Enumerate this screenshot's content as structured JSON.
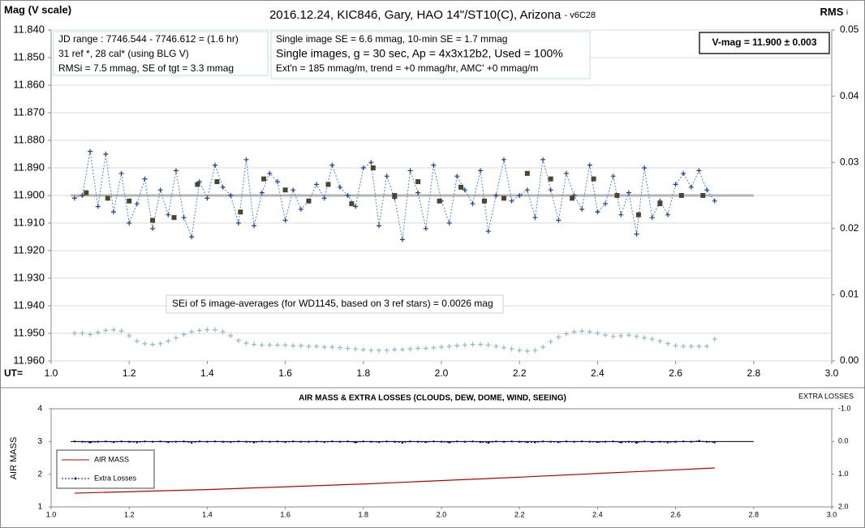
{
  "chart_data": [
    {
      "type": "line",
      "title": "2016.12.24,  KIC846, Gary, HAO 14\"/ST10(C), Arizona",
      "title_suffix": "- v6C28",
      "ylabel": "Mag (V scale)",
      "y2label": "RMS",
      "y2label_sub": "i",
      "xlabel": "UT=",
      "xlim": [
        1.0,
        3.0
      ],
      "xticks": [
        {
          "value": 1.0,
          "label": "1.0"
        },
        1.2,
        1.4,
        1.6,
        1.8,
        {
          "value": 2.0,
          "label": "2.0"
        },
        2.2,
        2.4,
        2.6,
        2.8,
        {
          "value": 3.0,
          "label": "3.0"
        }
      ],
      "ylim": [
        11.84,
        11.96
      ],
      "y_inverted": true,
      "yticks": [
        {
          "value": 11.84,
          "label": "11.840"
        },
        {
          "value": 11.85,
          "label": "11.850"
        },
        {
          "value": 11.86,
          "label": "11.860"
        },
        {
          "value": 11.87,
          "label": "11.870"
        },
        {
          "value": 11.88,
          "label": "11.880"
        },
        {
          "value": 11.89,
          "label": "11.890"
        },
        {
          "value": 11.9,
          "label": "11.900"
        },
        {
          "value": 11.91,
          "label": "11.910"
        },
        {
          "value": 11.92,
          "label": "11.920"
        },
        {
          "value": 11.93,
          "label": "11.930"
        },
        {
          "value": 11.94,
          "label": "11.940"
        },
        {
          "value": 11.95,
          "label": "11.950"
        },
        {
          "value": 11.96,
          "label": "11.960"
        }
      ],
      "y2lim": [
        0,
        0.05
      ],
      "y2ticks": [
        {
          "value": 0,
          "label": "0.00"
        },
        0.01,
        0.02,
        0.03,
        0.04,
        0.05
      ],
      "grid": true,
      "x": [
        1.06,
        1.08,
        1.1,
        1.12,
        1.14,
        1.16,
        1.18,
        1.2,
        1.22,
        1.24,
        1.26,
        1.28,
        1.3,
        1.32,
        1.34,
        1.36,
        1.38,
        1.4,
        1.42,
        1.44,
        1.46,
        1.48,
        1.5,
        1.52,
        1.54,
        1.56,
        1.58,
        1.6,
        1.62,
        1.64,
        1.66,
        1.68,
        1.7,
        1.72,
        1.74,
        1.76,
        1.78,
        1.8,
        1.82,
        1.84,
        1.86,
        1.88,
        1.9,
        1.92,
        1.94,
        1.96,
        1.98,
        2.0,
        2.02,
        2.04,
        2.06,
        2.08,
        2.1,
        2.12,
        2.14,
        2.16,
        2.18,
        2.2,
        2.22,
        2.24,
        2.26,
        2.28,
        2.3,
        2.32,
        2.34,
        2.36,
        2.38,
        2.4,
        2.42,
        2.44,
        2.46,
        2.48,
        2.5,
        2.52,
        2.54,
        2.56,
        2.58,
        2.6,
        2.62,
        2.64,
        2.66,
        2.68,
        2.7
      ],
      "series": [
        {
          "color": "#1f3f8f",
          "line_color": "#4a86c8",
          "line": "dashed",
          "marker": "+",
          "values": [
            11.901,
            11.9,
            11.884,
            11.904,
            11.885,
            11.906,
            11.892,
            11.91,
            11.903,
            11.894,
            11.912,
            11.898,
            11.907,
            11.891,
            11.908,
            11.915,
            11.895,
            11.901,
            11.889,
            11.897,
            11.9,
            11.91,
            11.887,
            11.911,
            11.899,
            11.892,
            11.895,
            11.909,
            11.898,
            11.905,
            11.902,
            11.896,
            11.901,
            11.889,
            11.897,
            11.9,
            11.904,
            11.89,
            11.888,
            11.911,
            11.893,
            11.901,
            11.916,
            11.891,
            11.899,
            11.912,
            11.889,
            11.902,
            11.91,
            11.893,
            11.898,
            11.903,
            11.891,
            11.913,
            11.9,
            11.887,
            11.902,
            11.9,
            11.898,
            11.908,
            11.887,
            11.898,
            11.909,
            11.892,
            11.9,
            11.905,
            11.889,
            11.906,
            11.903,
            11.893,
            11.907,
            11.899,
            11.914,
            11.89,
            11.908,
            11.902,
            11.907,
            11.896,
            11.892,
            11.897,
            11.891,
            11.898,
            11.902
          ]
        },
        {
          "color": "#4a4530",
          "line": "none",
          "marker": "square",
          "x": [
            1.09,
            1.145,
            1.2,
            1.26,
            1.315,
            1.375,
            1.425,
            1.485,
            1.545,
            1.6,
            1.66,
            1.71,
            1.77,
            1.825,
            1.88,
            1.94,
            1.995,
            2.05,
            2.11,
            2.16,
            2.22,
            2.28,
            2.335,
            2.39,
            2.45,
            2.505,
            2.56,
            2.615,
            2.67
          ],
          "values": [
            11.899,
            11.901,
            11.902,
            11.909,
            11.908,
            11.896,
            11.895,
            11.906,
            11.894,
            11.898,
            11.902,
            11.896,
            11.903,
            11.89,
            11.9,
            11.895,
            11.902,
            11.897,
            11.902,
            11.901,
            11.892,
            11.894,
            11.901,
            11.894,
            11.9,
            11.907,
            11.903,
            11.9,
            11.9
          ]
        },
        {
          "color": "#8fb8c8",
          "line": "none",
          "marker": "+",
          "axis": "y2",
          "values": [
            0.0042,
            0.0042,
            0.004,
            0.0043,
            0.0046,
            0.0047,
            0.0045,
            0.0038,
            0.003,
            0.0026,
            0.0025,
            0.0026,
            0.003,
            0.0035,
            0.004,
            0.0044,
            0.0046,
            0.0047,
            0.0047,
            0.0044,
            0.0038,
            0.0031,
            0.0027,
            0.0025,
            0.0024,
            0.0024,
            0.0024,
            0.0024,
            0.0023,
            0.0023,
            0.0022,
            0.0022,
            0.0021,
            0.0021,
            0.002,
            0.0019,
            0.0018,
            0.0017,
            0.0016,
            0.0016,
            0.0016,
            0.0017,
            0.0017,
            0.0018,
            0.0019,
            0.0019,
            0.002,
            0.0021,
            0.0022,
            0.0023,
            0.0024,
            0.0025,
            0.0025,
            0.0024,
            0.0022,
            0.002,
            0.0018,
            0.0016,
            0.0015,
            0.0016,
            0.0021,
            0.0029,
            0.0036,
            0.0041,
            0.0044,
            0.0045,
            0.0044,
            0.0042,
            0.0039,
            0.0037,
            0.0038,
            0.0039,
            0.0037,
            0.0035,
            0.0033,
            0.003,
            0.0026,
            0.0023,
            0.0022,
            0.0022,
            0.0022,
            0.0022,
            0.0033
          ]
        }
      ],
      "ref_line": {
        "value": 11.9,
        "x": [
          1.05,
          2.8
        ],
        "color": "#b4b4b4"
      },
      "info_boxes": [
        [
          "JD range  : 7746.544 - 7746.612 = (1.6 hr)",
          "31 ref *, 28 cal* (using BLG V)",
          "RMSi = 7.5 mmag, SE of tgt = 3.3 mmag"
        ],
        [
          "Single image SE = 6.6 mmag, 10-min SE = 1.7 mmag",
          "Single images, g = 30 sec, Ap = 4x3x12b2, Used = 100%",
          "Ext'n = 185 mmag/m, trend = +0 mmag/hr, AMC' +0 mmag/m"
        ]
      ],
      "vmag_box": "V-mag = 11.900 ± 0.003",
      "note": "SEi of 5 image-averages (for WD1145, based on 3 ref stars) = 0.0026 mag"
    },
    {
      "type": "line",
      "title": "AIR MASS & EXTRA LOSSES (CLOUDS, DEW, DOME, WIND, SEEING)",
      "ylabel": "AIR MASS",
      "y2label": "EXTRA LOSSES",
      "xlim": [
        1.0,
        3.0
      ],
      "xticks": [
        {
          "value": 1.0,
          "label": "1.0"
        },
        1.2,
        1.4,
        1.6,
        1.8,
        {
          "value": 2.0,
          "label": "2.0"
        },
        2.2,
        2.4,
        2.6,
        2.8,
        {
          "value": 3.0,
          "label": "3.0"
        }
      ],
      "ylim": [
        1,
        4
      ],
      "yticks": [
        1,
        2,
        3,
        4
      ],
      "y2lim": [
        -1.0,
        2.0
      ],
      "y2_inverted": true,
      "y2ticks": [
        {
          "value": -1.0,
          "label": "-1.0"
        },
        {
          "value": 0,
          "label": "0.0"
        },
        {
          "value": 1.0,
          "label": "1.0"
        },
        {
          "value": 2.0,
          "label": "2.0"
        }
      ],
      "legend": "lower left",
      "x": [
        1.06,
        1.08,
        1.1,
        1.12,
        1.14,
        1.16,
        1.18,
        1.2,
        1.22,
        1.24,
        1.26,
        1.28,
        1.3,
        1.32,
        1.34,
        1.36,
        1.38,
        1.4,
        1.42,
        1.44,
        1.46,
        1.48,
        1.5,
        1.52,
        1.54,
        1.56,
        1.58,
        1.6,
        1.62,
        1.64,
        1.66,
        1.68,
        1.7,
        1.72,
        1.74,
        1.76,
        1.78,
        1.8,
        1.82,
        1.84,
        1.86,
        1.88,
        1.9,
        1.92,
        1.94,
        1.96,
        1.98,
        2.0,
        2.02,
        2.04,
        2.06,
        2.08,
        2.1,
        2.12,
        2.14,
        2.16,
        2.18,
        2.2,
        2.22,
        2.24,
        2.26,
        2.28,
        2.3,
        2.32,
        2.34,
        2.36,
        2.38,
        2.4,
        2.42,
        2.44,
        2.46,
        2.48,
        2.5,
        2.52,
        2.54,
        2.56,
        2.58,
        2.6,
        2.62,
        2.64,
        2.66,
        2.68,
        2.7
      ],
      "series": [
        {
          "name": "AIR MASS",
          "color": "#c00000",
          "line": "solid",
          "marker": "none",
          "x": [
            1.06,
            1.4,
            1.8,
            2.2,
            2.7
          ],
          "values": [
            1.42,
            1.53,
            1.7,
            1.91,
            2.19
          ]
        },
        {
          "name": "Extra Losses",
          "color": "#0000aa",
          "line": "dashed",
          "marker": "dot",
          "axis": "y2",
          "values": [
            0.0,
            0.01,
            0.03,
            0.01,
            0.0,
            0.02,
            0.0,
            0.01,
            0.03,
            0.0,
            0.01,
            0.0,
            0.02,
            0.01,
            0.0,
            0.04,
            0.0,
            0.01,
            0.0,
            0.01,
            0.02,
            0.0,
            0.01,
            0.03,
            0.0,
            0.01,
            0.0,
            0.02,
            0.0,
            0.01,
            0.01,
            0.0,
            0.02,
            0.0,
            0.01,
            0.0,
            0.03,
            0.0,
            0.01,
            0.02,
            0.0,
            0.01,
            0.04,
            0.0,
            0.01,
            0.02,
            0.0,
            0.01,
            0.03,
            0.0,
            0.01,
            0.0,
            0.02,
            0.04,
            0.0,
            0.01,
            0.0,
            0.01,
            0.02,
            0.03,
            0.0,
            0.01,
            0.02,
            0.0,
            0.01,
            0.0,
            0.01,
            0.02,
            0.01,
            0.0,
            0.03,
            0.01,
            0.04,
            0.0,
            0.02,
            0.01,
            0.03,
            0.01,
            0.0,
            0.01,
            -0.02,
            0.01,
            0.03
          ]
        }
      ],
      "ref_line": {
        "value": 0,
        "axis": "y2",
        "x": [
          1.05,
          2.8
        ],
        "color": "#000000"
      }
    }
  ]
}
